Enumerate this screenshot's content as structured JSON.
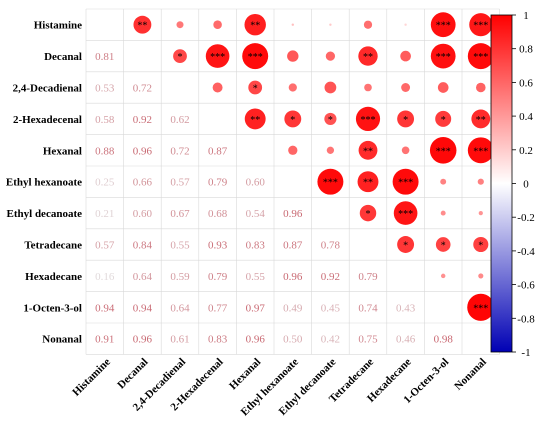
{
  "chart_data": {
    "type": "heatmap",
    "variables": [
      "Histamine",
      "Decanal",
      "2,4-Decadienal",
      "2-Hexadecenal",
      "Hexanal",
      "Ethyl hexanoate",
      "Ethyl decanoate",
      "Tetradecane",
      "Hexadecane",
      "1-Octen-3-ol",
      "Nonanal"
    ],
    "lower_values": [
      [],
      [
        0.81
      ],
      [
        0.53,
        0.72
      ],
      [
        0.58,
        0.92,
        0.62
      ],
      [
        0.88,
        0.96,
        0.72,
        0.87
      ],
      [
        0.25,
        0.66,
        0.57,
        0.79,
        0.6
      ],
      [
        0.21,
        0.6,
        0.67,
        0.68,
        0.54,
        0.96
      ],
      [
        0.57,
        0.84,
        0.55,
        0.93,
        0.83,
        0.87,
        0.78
      ],
      [
        0.16,
        0.64,
        0.59,
        0.79,
        0.55,
        0.96,
        0.92,
        0.79
      ],
      [
        0.94,
        0.94,
        0.64,
        0.77,
        0.97,
        0.49,
        0.45,
        0.74,
        0.43
      ],
      [
        0.91,
        0.96,
        0.61,
        0.83,
        0.96,
        0.5,
        0.42,
        0.75,
        0.46,
        0.98
      ]
    ],
    "upper_significance": [
      [
        null,
        "**",
        "",
        "",
        "**",
        "",
        "",
        "",
        "",
        "***",
        "***"
      ],
      [
        null,
        null,
        "*",
        "***",
        "***",
        "",
        "",
        "**",
        "",
        "***",
        "***"
      ],
      [
        null,
        null,
        null,
        "",
        "*",
        "",
        "",
        "",
        "",
        "",
        ""
      ],
      [
        null,
        null,
        null,
        null,
        "**",
        "*",
        "*",
        "***",
        "*",
        "*",
        "**"
      ],
      [
        null,
        null,
        null,
        null,
        null,
        "",
        "",
        "**",
        "",
        "***",
        "***"
      ],
      [
        null,
        null,
        null,
        null,
        null,
        null,
        "***",
        "**",
        "***",
        "",
        ""
      ],
      [
        null,
        null,
        null,
        null,
        null,
        null,
        null,
        "*",
        "***",
        "",
        ""
      ],
      [
        null,
        null,
        null,
        null,
        null,
        null,
        null,
        null,
        "*",
        "*",
        "*"
      ],
      [
        null,
        null,
        null,
        null,
        null,
        null,
        null,
        null,
        null,
        "",
        ""
      ],
      [
        null,
        null,
        null,
        null,
        null,
        null,
        null,
        null,
        null,
        null,
        "***"
      ],
      [
        null,
        null,
        null,
        null,
        null,
        null,
        null,
        null,
        null,
        null,
        null
      ]
    ],
    "colorbar": {
      "min": -1,
      "max": 1,
      "ticks": [
        "1",
        "0.8",
        "0.6",
        "0.4",
        "0.2",
        "0",
        "-0.2",
        "-0.4",
        "-0.6",
        "-0.8",
        "-1"
      ],
      "tick_values": [
        1,
        0.8,
        0.6,
        0.4,
        0.2,
        0,
        -0.2,
        -0.4,
        -0.6,
        -0.8,
        -1
      ],
      "colors": {
        "negative": "#0000b4",
        "zero": "#ffffff",
        "positive": "#ff0000"
      }
    },
    "grid": true
  }
}
